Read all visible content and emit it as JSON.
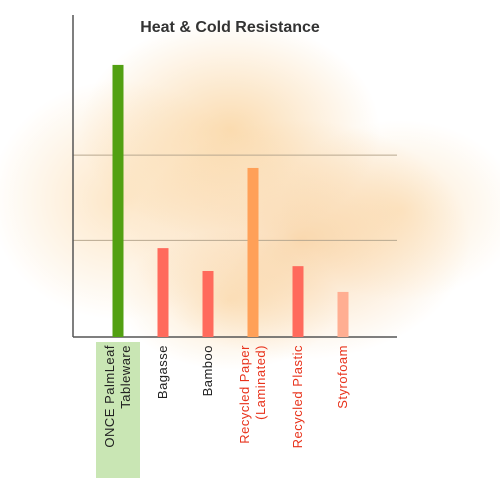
{
  "chart_data": {
    "type": "bar",
    "title": "Heat & Cold Resistance",
    "categories": [
      "ONCE PalmLeaf Tableware",
      "Bagasse",
      "Bamboo",
      "Recycled Paper (Laminated)",
      "Recycled Plastic",
      "Styrofoam"
    ],
    "values": [
      84.5,
      27.6,
      20.5,
      52.5,
      22,
      14
    ],
    "colors": [
      "#52a012",
      "#ff6a5c",
      "#ff6a5c",
      "#ffa058",
      "#ff6a5c",
      "#ffae92"
    ],
    "label_colors": [
      "#222222",
      "#222222",
      "#222222",
      "#e8331c",
      "#e8331c",
      "#e8331c"
    ],
    "highlight_color": "#c9e6b4",
    "ylim": [
      0,
      100
    ],
    "yticks": [
      30,
      56.5
    ],
    "grid": true
  }
}
